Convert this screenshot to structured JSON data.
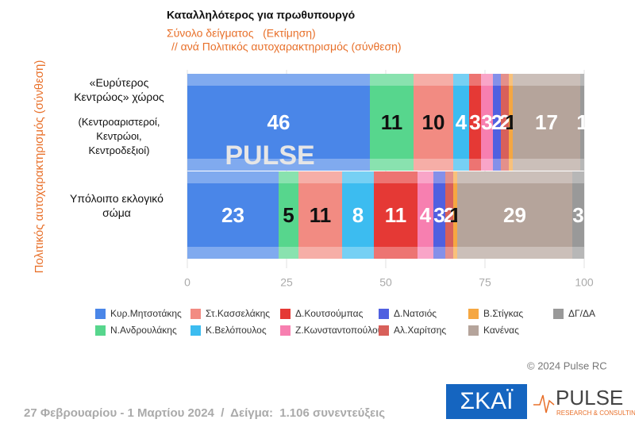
{
  "chart_data": {
    "type": "stacked-bar-horizontal",
    "title": "Καταλληλότερος για πρωθυπουργό",
    "subtitle": "Σύνολο δείγματος   (Εκτίμηση)",
    "subtitle2": "// ανά Πολιτικός αυτοχαρακτηρισμός (σύνθεση)",
    "ylabel": "Πολιτικός αυτοχαρακτηρισμός (σύνθεση)",
    "categories": [
      "«Ευρύτερος Κεντρώος» χώρος",
      "Υπόλοιπο εκλογικό σώμα"
    ],
    "category_note": "(Κεντροαριστεροί, Κεντρώοι, Κεντροδεξιοί)",
    "xlim": [
      0,
      100
    ],
    "xticks": [
      0,
      25,
      50,
      75,
      100
    ],
    "grid": true,
    "series": [
      {
        "name": "Κυρ.Μητσοτάκης",
        "color": "#4a86e8",
        "label_color": "#ffffff",
        "values": [
          46,
          23
        ]
      },
      {
        "name": "Ν.Ανδρουλάκης",
        "color": "#57d68d",
        "label_color": "#111111",
        "values": [
          11,
          5
        ]
      },
      {
        "name": "Στ.Κασσελάκης",
        "color": "#f28b82",
        "label_color": "#111111",
        "values": [
          10,
          11
        ]
      },
      {
        "name": "Κ.Βελόπουλος",
        "color": "#3cbcf0",
        "label_color": "#ffffff",
        "values": [
          4,
          8
        ]
      },
      {
        "name": "Δ.Κουτσούμπας",
        "color": "#e53935",
        "label_color": "#ffffff",
        "values": [
          3,
          11
        ]
      },
      {
        "name": "Ζ.Κωνσταντοπούλου",
        "color": "#f77fb0",
        "label_color": "#ffffff",
        "values": [
          3,
          4
        ]
      },
      {
        "name": "Δ.Νατσιός",
        "color": "#5060e0",
        "label_color": "#ffffff",
        "values": [
          2,
          3
        ]
      },
      {
        "name": "Αλ.Χαρίτσης",
        "color": "#d8605a",
        "label_color": "#ffffff",
        "values": [
          2,
          2
        ]
      },
      {
        "name": "Β.Στίγκας",
        "color": "#f5a742",
        "label_color": "#111111",
        "values": [
          1,
          1
        ]
      },
      {
        "name": "Κανένας",
        "color": "#b5a49b",
        "label_color": "#ffffff",
        "values": [
          17,
          29
        ]
      },
      {
        "name": "ΔΓ/ΔΑ",
        "color": "#999999",
        "label_color": "#ffffff",
        "values": [
          1,
          3
        ]
      }
    ]
  },
  "watermark": "PULSE",
  "copyright": "© 2024 Pulse RC",
  "footer": "27 Φεβρουαρίου - 1 Μαρτίου 2024  /  Δείγμα:  1.106 συνεντεύξεις",
  "logos": {
    "skai": "ΣΚΑΪ",
    "pulse": "PULSE",
    "pulse_sub": "RESEARCH & CONSULTING"
  }
}
